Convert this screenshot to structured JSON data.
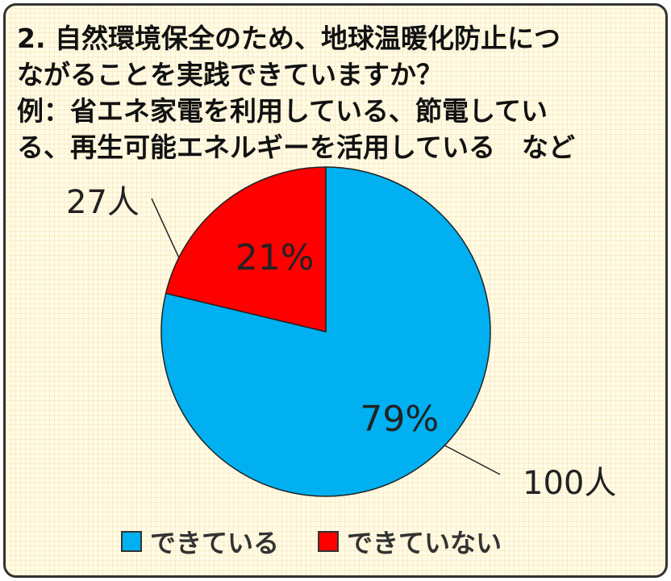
{
  "chart_data": {
    "type": "pie",
    "title_lines": [
      "2.  自然環境保全のため、地球温暖化防止につ",
      "ながることを実践できていますか？",
      "例：省エネ家電を利用している、節電してい",
      "る、再生可能エネルギーを活用している　など"
    ],
    "slices": [
      {
        "label": "できている",
        "value": 100,
        "count_label": "100人",
        "percent_label": "79%",
        "color": "#00b0f0"
      },
      {
        "label": "できていない",
        "value": 27,
        "count_label": "27人",
        "percent_label": "21%",
        "color": "#ff0000"
      }
    ],
    "legend_position": "bottom"
  }
}
